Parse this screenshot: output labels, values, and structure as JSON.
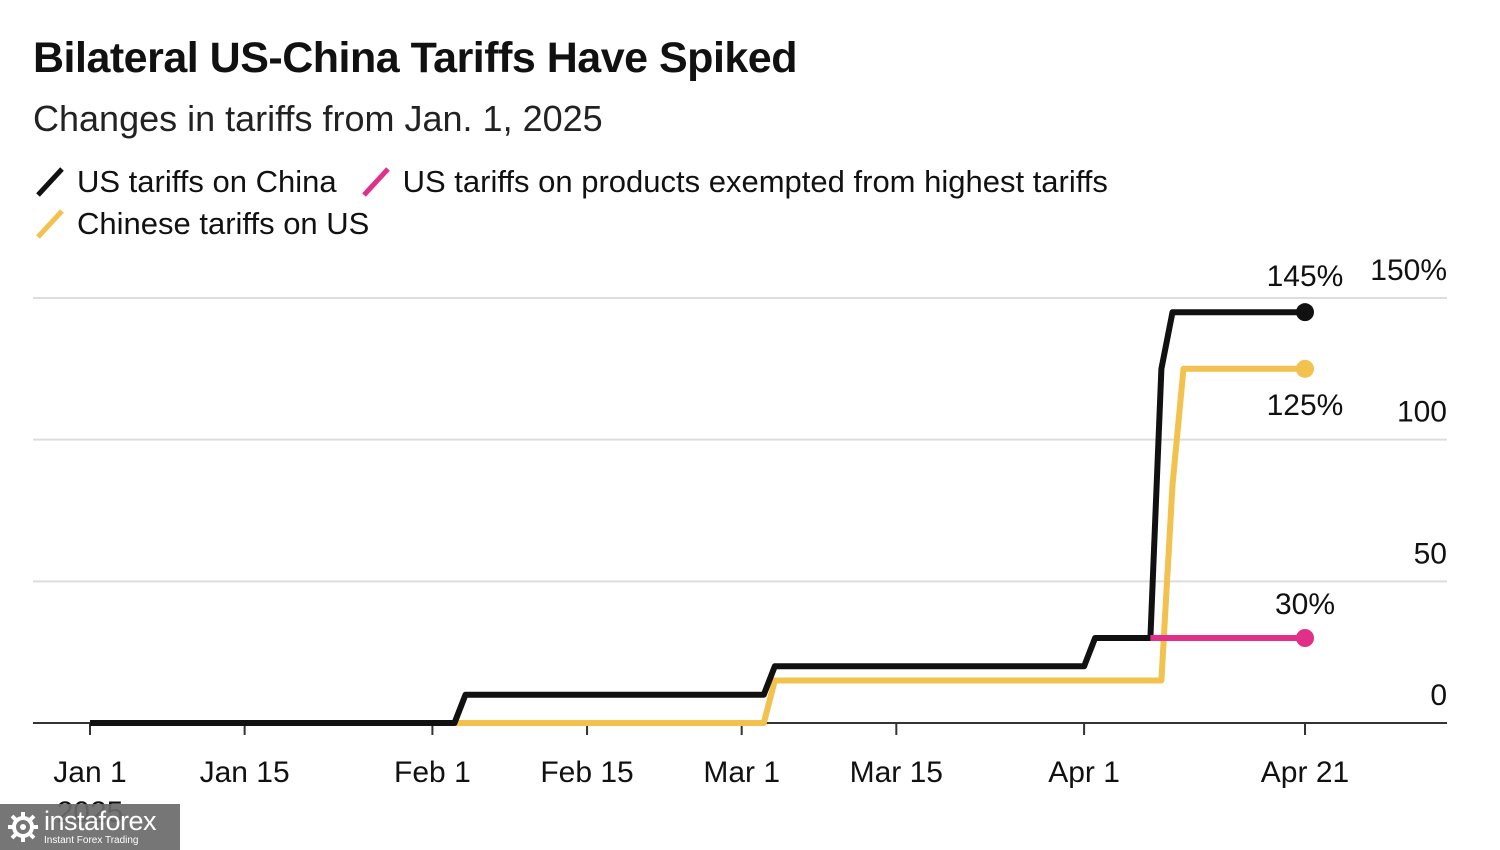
{
  "header": {
    "title": "Bilateral US-China Tariffs Have Spiked",
    "subtitle": "Changes in tariffs from Jan. 1, 2025"
  },
  "watermark": {
    "name": "instaforex",
    "tagline": "Instant Forex Trading"
  },
  "chart_data": {
    "type": "line",
    "title": "Bilateral US-China Tariffs Have Spiked",
    "subtitle": "Changes in tariffs from Jan. 1, 2025",
    "xlabel": "",
    "ylabel": "",
    "ylim": [
      0,
      150
    ],
    "xlim": [
      "2025-01-01",
      "2025-04-21"
    ],
    "y_ticks": [
      0,
      50,
      100,
      150
    ],
    "y_tick_labels": [
      "0",
      "50",
      "100",
      "150%"
    ],
    "x_ticks": [
      "2025-01-01",
      "2025-01-15",
      "2025-02-01",
      "2025-02-15",
      "2025-03-01",
      "2025-03-15",
      "2025-04-01",
      "2025-04-21"
    ],
    "x_tick_labels": [
      "Jan 1",
      "Jan 15",
      "Feb 1",
      "Feb 15",
      "Mar 1",
      "Mar 15",
      "Apr 1",
      "Apr 21"
    ],
    "x_year_label": "2025",
    "grid": true,
    "legend_position": "top-left",
    "series": [
      {
        "name": "US tariffs on China",
        "color": "#111111",
        "x": [
          "2025-01-01",
          "2025-02-03",
          "2025-02-04",
          "2025-03-03",
          "2025-03-04",
          "2025-04-01",
          "2025-04-02",
          "2025-04-07",
          "2025-04-08",
          "2025-04-09",
          "2025-04-21"
        ],
        "y": [
          0,
          0,
          10,
          10,
          20,
          20,
          30,
          30,
          125,
          145,
          145
        ],
        "end_label": "145%"
      },
      {
        "name": "US tariffs on products exempted from highest tariffs",
        "color": "#e0308a",
        "x": [
          "2025-04-07",
          "2025-04-21"
        ],
        "y": [
          30,
          30
        ],
        "end_label": "30%"
      },
      {
        "name": "Chinese tariffs on US",
        "color": "#f2c14e",
        "x": [
          "2025-01-01",
          "2025-03-03",
          "2025-03-04",
          "2025-04-08",
          "2025-04-09",
          "2025-04-10",
          "2025-04-21"
        ],
        "y": [
          0,
          0,
          15,
          15,
          84,
          125,
          125
        ],
        "end_label": "125%"
      }
    ]
  }
}
